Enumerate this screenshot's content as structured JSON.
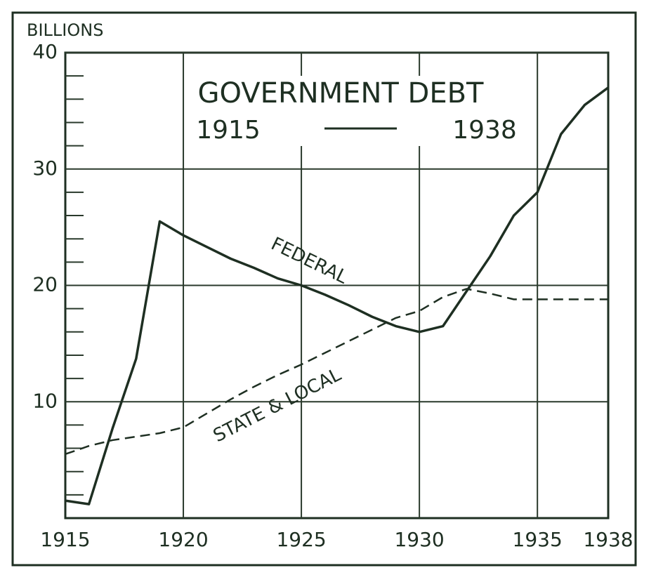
{
  "chart_data": {
    "type": "line",
    "title": "GOVERNMENT DEBT",
    "title_years": [
      "1915",
      "1938"
    ],
    "ylabel": "BILLIONS",
    "x": [
      1915,
      1916,
      1917,
      1918,
      1919,
      1920,
      1921,
      1922,
      1923,
      1924,
      1925,
      1926,
      1927,
      1928,
      1929,
      1930,
      1931,
      1932,
      1933,
      1934,
      1935,
      1936,
      1937,
      1938
    ],
    "series": [
      {
        "name": "FEDERAL",
        "color": "#1e2f22",
        "style": "solid",
        "values": [
          1.5,
          1.2,
          7.7,
          13.7,
          25.5,
          24.3,
          23.3,
          22.3,
          21.5,
          20.6,
          20,
          19.2,
          18.3,
          17.3,
          16.5,
          16,
          16.5,
          19.5,
          22.5,
          26,
          28,
          33,
          35.5,
          37
        ]
      },
      {
        "name": "STATE & LOCAL",
        "color": "#1e2f22",
        "style": "dashed",
        "values": [
          5.5,
          6.2,
          6.7,
          7,
          7.3,
          7.8,
          9,
          10.2,
          11.3,
          12.3,
          13.2,
          14.2,
          15.2,
          16.2,
          17.2,
          17.8,
          19,
          19.7,
          19.3,
          18.8,
          18.8,
          18.8,
          18.8,
          18.8
        ]
      }
    ],
    "xlim": [
      1915,
      1938
    ],
    "xticks": [
      1915,
      1920,
      1925,
      1930,
      1935,
      1938
    ],
    "ylim": [
      0,
      40
    ],
    "yticks": [
      10,
      20,
      30,
      40
    ],
    "yticks_minor": [
      2,
      4,
      6,
      8,
      12,
      14,
      16,
      18,
      22,
      24,
      26,
      28,
      32,
      34,
      36,
      38
    ],
    "grid": true
  }
}
